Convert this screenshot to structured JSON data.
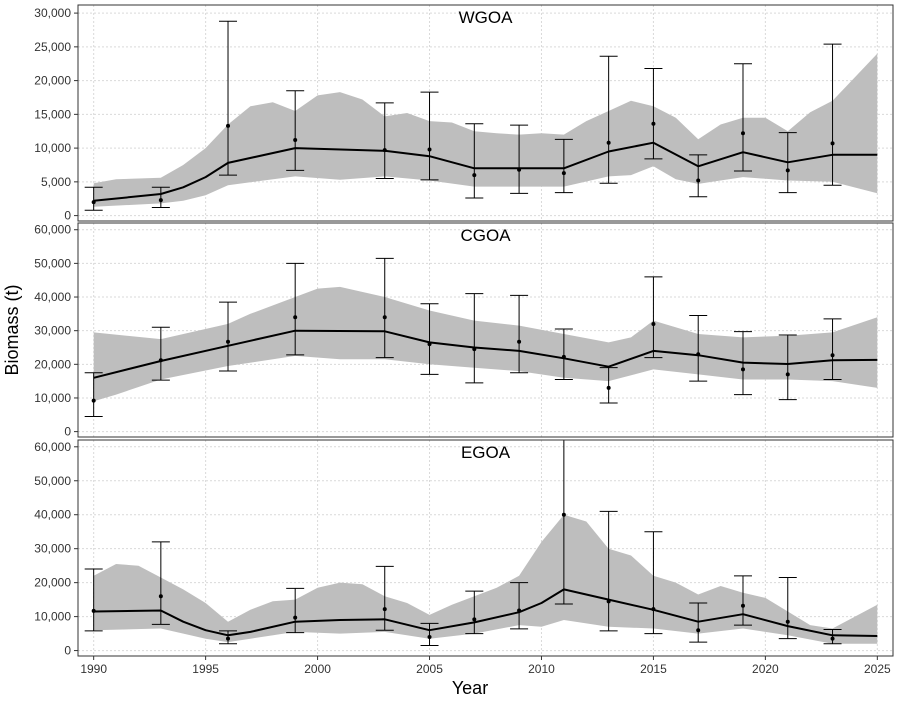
{
  "figure": {
    "xlabel": "Year",
    "ylabel": "Biomass (t)"
  },
  "style": {
    "band": "#bebebe",
    "line": "#000000",
    "grid": "#d9d9d9"
  },
  "x_axis": {
    "xlim": [
      1989.3,
      2025.7
    ],
    "ticks": [
      "1990",
      "1995",
      "2000",
      "2005",
      "2010",
      "2015",
      "2020",
      "2025"
    ]
  },
  "chart_data": [
    {
      "type": "line",
      "title": "WGOA",
      "ylim": [
        -800,
        31200
      ],
      "yticks": [
        "0",
        "5,000",
        "10,000",
        "15,000",
        "20,000",
        "25,000",
        "30,000"
      ],
      "grid": true,
      "series": [
        {
          "role": "fit-line",
          "x": [
            1990,
            1993,
            1994,
            1995,
            1996,
            1999,
            2003,
            2005,
            2007,
            2009,
            2011,
            2013,
            2015,
            2017,
            2019,
            2021,
            2023,
            2025
          ],
          "y": [
            2200,
            3200,
            4200,
            5700,
            7800,
            10000,
            9600,
            8800,
            7000,
            7000,
            7000,
            9500,
            10800,
            7300,
            9400,
            7900,
            9000,
            9000
          ]
        },
        {
          "role": "interval-upper",
          "x": [
            1990,
            1991,
            1993,
            1994,
            1995,
            1996,
            1997,
            1998,
            1999,
            2000,
            2001,
            2002,
            2003,
            2004,
            2005,
            2006,
            2007,
            2008,
            2009,
            2010,
            2011,
            2012,
            2013,
            2014,
            2015,
            2016,
            2017,
            2018,
            2019,
            2020,
            2021,
            2022,
            2023,
            2024,
            2025
          ],
          "y": [
            4800,
            5400,
            5600,
            7500,
            10000,
            13500,
            16200,
            16800,
            15500,
            17800,
            18300,
            17200,
            14700,
            15200,
            14000,
            13800,
            12500,
            12200,
            12000,
            12200,
            12000,
            14000,
            15500,
            17000,
            16200,
            14500,
            11300,
            13500,
            14500,
            14500,
            12500,
            15300,
            17000,
            20500,
            24000
          ]
        },
        {
          "role": "interval-lower",
          "x": [
            1990,
            1993,
            1994,
            1995,
            1996,
            1999,
            2001,
            2003,
            2005,
            2007,
            2009,
            2011,
            2013,
            2014,
            2015,
            2016,
            2017,
            2019,
            2021,
            2023,
            2025
          ],
          "y": [
            1300,
            1800,
            2200,
            3000,
            4500,
            5800,
            5300,
            5800,
            5200,
            4300,
            4300,
            4300,
            5800,
            6000,
            7300,
            5400,
            4700,
            5700,
            5200,
            5000,
            3300
          ]
        },
        {
          "role": "observed-mean",
          "x": [
            1990,
            1993,
            1996,
            1999,
            2003,
            2005,
            2007,
            2009,
            2011,
            2013,
            2015,
            2017,
            2019,
            2021,
            2023
          ],
          "y": [
            2000,
            2300,
            13300,
            11200,
            9700,
            9800,
            6000,
            6800,
            6300,
            10800,
            13600,
            5200,
            12200,
            6700,
            10700
          ]
        },
        {
          "role": "observed-lower",
          "x": [
            1990,
            1993,
            1996,
            1999,
            2003,
            2005,
            2007,
            2009,
            2011,
            2013,
            2015,
            2017,
            2019,
            2021,
            2023
          ],
          "y": [
            800,
            1200,
            6000,
            6700,
            5500,
            5300,
            2600,
            3300,
            3400,
            4800,
            8400,
            2800,
            6600,
            3400,
            4500
          ]
        },
        {
          "role": "observed-upper",
          "x": [
            1990,
            1993,
            1996,
            1999,
            2003,
            2005,
            2007,
            2009,
            2011,
            2013,
            2015,
            2017,
            2019,
            2021,
            2023
          ],
          "y": [
            4200,
            4200,
            28800,
            18500,
            16700,
            18300,
            13600,
            13400,
            11300,
            23600,
            21800,
            9000,
            22500,
            12300,
            25400
          ]
        }
      ]
    },
    {
      "type": "line",
      "title": "CGOA",
      "ylim": [
        -1600,
        62000
      ],
      "yticks": [
        "0",
        "10,000",
        "20,000",
        "30,000",
        "40,000",
        "50,000",
        "60,000"
      ],
      "grid": true,
      "series": [
        {
          "role": "fit-line",
          "x": [
            1990,
            1993,
            1996,
            1999,
            2003,
            2005,
            2007,
            2009,
            2011,
            2013,
            2015,
            2017,
            2019,
            2021,
            2023,
            2025
          ],
          "y": [
            16000,
            21000,
            25500,
            30000,
            29800,
            26500,
            25000,
            24000,
            21800,
            19300,
            24000,
            22700,
            20500,
            20100,
            21200,
            21300
          ]
        },
        {
          "role": "interval-upper",
          "x": [
            1990,
            1993,
            1996,
            1997,
            1999,
            2000,
            2001,
            2003,
            2005,
            2007,
            2009,
            2011,
            2013,
            2014,
            2015,
            2017,
            2019,
            2021,
            2023,
            2025
          ],
          "y": [
            29500,
            27500,
            32000,
            35000,
            40000,
            42500,
            43000,
            40000,
            36000,
            33000,
            31500,
            29000,
            26500,
            28000,
            33000,
            29000,
            28000,
            28500,
            29500,
            34000
          ]
        },
        {
          "role": "interval-lower",
          "x": [
            1990,
            1991,
            1993,
            1996,
            1999,
            2001,
            2003,
            2005,
            2007,
            2009,
            2011,
            2013,
            2015,
            2017,
            2019,
            2021,
            2023,
            2025
          ],
          "y": [
            9000,
            11000,
            15500,
            19500,
            22500,
            21500,
            21500,
            20000,
            19000,
            18000,
            16000,
            15000,
            18500,
            17000,
            15500,
            15500,
            15000,
            13000
          ]
        },
        {
          "role": "observed-mean",
          "x": [
            1990,
            1993,
            1996,
            1999,
            2003,
            2005,
            2007,
            2009,
            2011,
            2013,
            2015,
            2017,
            2019,
            2021,
            2023
          ],
          "y": [
            9200,
            21200,
            26700,
            34000,
            34000,
            26000,
            24500,
            26700,
            22200,
            13000,
            32000,
            23000,
            18500,
            17000,
            22700
          ]
        },
        {
          "role": "observed-lower",
          "x": [
            1990,
            1993,
            1996,
            1999,
            2003,
            2005,
            2007,
            2009,
            2011,
            2013,
            2015,
            2017,
            2019,
            2021,
            2023
          ],
          "y": [
            4500,
            15300,
            18000,
            22800,
            22000,
            17000,
            14500,
            17500,
            15500,
            8500,
            22000,
            15000,
            11000,
            9500,
            15500
          ]
        },
        {
          "role": "observed-upper",
          "x": [
            1990,
            1993,
            1996,
            1999,
            2003,
            2005,
            2007,
            2009,
            2011,
            2013,
            2015,
            2017,
            2019,
            2021,
            2023
          ],
          "y": [
            17500,
            31000,
            38500,
            50000,
            51500,
            38000,
            41000,
            40500,
            30500,
            19000,
            46000,
            34500,
            29700,
            28700,
            33500
          ]
        }
      ]
    },
    {
      "type": "line",
      "title": "EGOA",
      "ylim": [
        -1600,
        62000
      ],
      "yticks": [
        "0",
        "10,000",
        "20,000",
        "30,000",
        "40,000",
        "50,000",
        "60,000"
      ],
      "grid": true,
      "series": [
        {
          "role": "fit-line",
          "x": [
            1990,
            1993,
            1994,
            1995,
            1996,
            1997,
            1999,
            2001,
            2003,
            2005,
            2007,
            2009,
            2010,
            2011,
            2013,
            2015,
            2017,
            2019,
            2021,
            2023,
            2025
          ],
          "y": [
            11500,
            11800,
            8500,
            6000,
            4500,
            5500,
            8500,
            9000,
            9200,
            6000,
            8300,
            11300,
            14000,
            18000,
            15000,
            12000,
            8500,
            10700,
            7200,
            4500,
            4300
          ]
        },
        {
          "role": "interval-upper",
          "x": [
            1990,
            1991,
            1992,
            1993,
            1994,
            1995,
            1996,
            1997,
            1998,
            1999,
            2000,
            2001,
            2002,
            2003,
            2004,
            2005,
            2006,
            2007,
            2008,
            2009,
            2010,
            2011,
            2012,
            2013,
            2014,
            2015,
            2016,
            2017,
            2018,
            2019,
            2020,
            2021,
            2022,
            2023,
            2024,
            2025
          ],
          "y": [
            22000,
            25500,
            25000,
            21500,
            18000,
            14000,
            8500,
            12000,
            14500,
            15000,
            18500,
            20000,
            19500,
            16000,
            14000,
            10500,
            13500,
            16000,
            18500,
            22000,
            32000,
            40000,
            38000,
            30000,
            28000,
            22000,
            20000,
            16500,
            19000,
            17000,
            15500,
            11500,
            7500,
            6500,
            10000,
            13500
          ]
        },
        {
          "role": "interval-lower",
          "x": [
            1990,
            1993,
            1995,
            1996,
            1997,
            1999,
            2001,
            2003,
            2005,
            2007,
            2009,
            2010,
            2011,
            2013,
            2015,
            2017,
            2019,
            2021,
            2023,
            2025
          ],
          "y": [
            6000,
            6500,
            3500,
            2500,
            3500,
            5500,
            5000,
            5500,
            3500,
            5000,
            7500,
            7000,
            9000,
            7000,
            6500,
            5000,
            6500,
            4500,
            2000,
            2000
          ]
        },
        {
          "role": "observed-mean",
          "x": [
            1990,
            1993,
            1996,
            1999,
            2003,
            2005,
            2007,
            2009,
            2011,
            2013,
            2015,
            2017,
            2019,
            2021,
            2023
          ],
          "y": [
            11700,
            16000,
            3500,
            9700,
            12200,
            4000,
            9200,
            11800,
            40000,
            14500,
            12200,
            6000,
            13200,
            8500,
            3500
          ]
        },
        {
          "role": "observed-lower",
          "x": [
            1990,
            1993,
            1996,
            1999,
            2003,
            2005,
            2007,
            2009,
            2011,
            2013,
            2015,
            2017,
            2019,
            2021,
            2023
          ],
          "y": [
            5800,
            7700,
            2000,
            5300,
            6000,
            1500,
            5000,
            6400,
            13700,
            5800,
            5000,
            2500,
            7500,
            3500,
            2000
          ]
        },
        {
          "role": "observed-upper",
          "x": [
            1990,
            1993,
            1996,
            1999,
            2003,
            2005,
            2007,
            2009,
            2011,
            2013,
            2015,
            2017,
            2019,
            2021,
            2023
          ],
          "y": [
            24000,
            32000,
            5800,
            18300,
            24800,
            8000,
            17500,
            20000,
            62000,
            41000,
            35000,
            14000,
            22000,
            21500,
            6200
          ]
        }
      ]
    }
  ]
}
